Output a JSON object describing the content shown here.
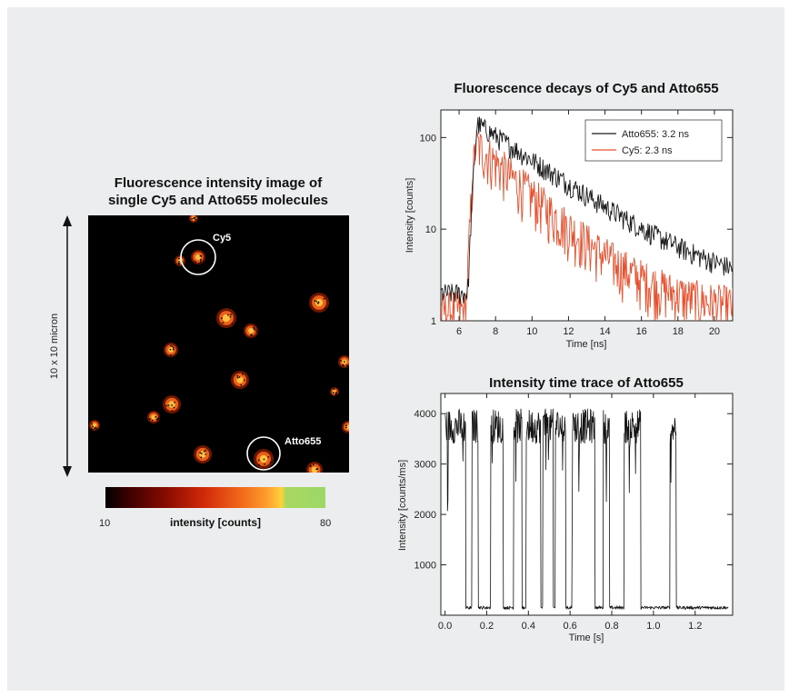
{
  "image_panel": {
    "title_line1": "Fluorescence intensity image of",
    "title_line2": "single Cy5 and Atto655 molecules",
    "scale_label": "10 x 10 micron",
    "marker_cy5": "Cy5",
    "marker_atto": "Atto655",
    "colorbar": {
      "min_label": "10",
      "max_label": "80",
      "label": "intensity [counts]",
      "colors": [
        "#000000",
        "#3a0000",
        "#8a0c00",
        "#d22a0a",
        "#f26a1a",
        "#ffa030",
        "#ffd23a",
        "#a8d860",
        "#9cd868"
      ]
    },
    "spot_color": "#ff9a2a"
  },
  "chart_data": [
    {
      "type": "line",
      "title": "Fluorescence decays of Cy5 and Atto655",
      "xlabel": "Time [ns]",
      "ylabel": "Intensity [counts]",
      "xlim": [
        5,
        21
      ],
      "ylim": [
        1,
        200
      ],
      "yscale": "log",
      "x_ticks": [
        6,
        8,
        10,
        12,
        14,
        16,
        18,
        20
      ],
      "y_ticks": [
        1,
        10,
        100
      ],
      "y_tick_labels": [
        "1",
        "10",
        "100"
      ],
      "legend_position": "top-right",
      "series": [
        {
          "name": "Atto655: 3.2 ns",
          "color": "#1a1a1a",
          "peak_time": 7.0,
          "peak_counts": 140,
          "lifetime_ns": 3.2,
          "baseline": 2
        },
        {
          "name": "Cy5: 2.3 ns",
          "color": "#e8502e",
          "peak_time": 6.9,
          "peak_counts": 85,
          "lifetime_ns": 2.3,
          "baseline": 1.3
        }
      ]
    },
    {
      "type": "line",
      "title": "Intensity time trace of Atto655",
      "xlabel": "Time [s]",
      "ylabel": "Intensity [counts/ms]",
      "xlim": [
        -0.02,
        1.38
      ],
      "ylim": [
        0,
        4400
      ],
      "x_ticks": [
        0.0,
        0.2,
        0.4,
        0.6,
        0.8,
        1.0,
        1.2
      ],
      "x_tick_labels": [
        "0.0",
        "0.2",
        "0.4",
        "0.6",
        "0.8",
        "1.0",
        "1.2"
      ],
      "y_ticks": [
        1000,
        2000,
        3000,
        4000
      ],
      "series": [
        {
          "name": "",
          "color": "#111111",
          "on_level": 3750,
          "off_level": 150,
          "on_intervals": [
            [
              0.0,
              0.1
            ],
            [
              0.13,
              0.16
            ],
            [
              0.22,
              0.28
            ],
            [
              0.33,
              0.37
            ],
            [
              0.39,
              0.46
            ],
            [
              0.47,
              0.52
            ],
            [
              0.53,
              0.58
            ],
            [
              0.61,
              0.72
            ],
            [
              0.76,
              0.79
            ],
            [
              0.86,
              0.94
            ],
            [
              1.08,
              1.11
            ]
          ]
        }
      ]
    }
  ]
}
